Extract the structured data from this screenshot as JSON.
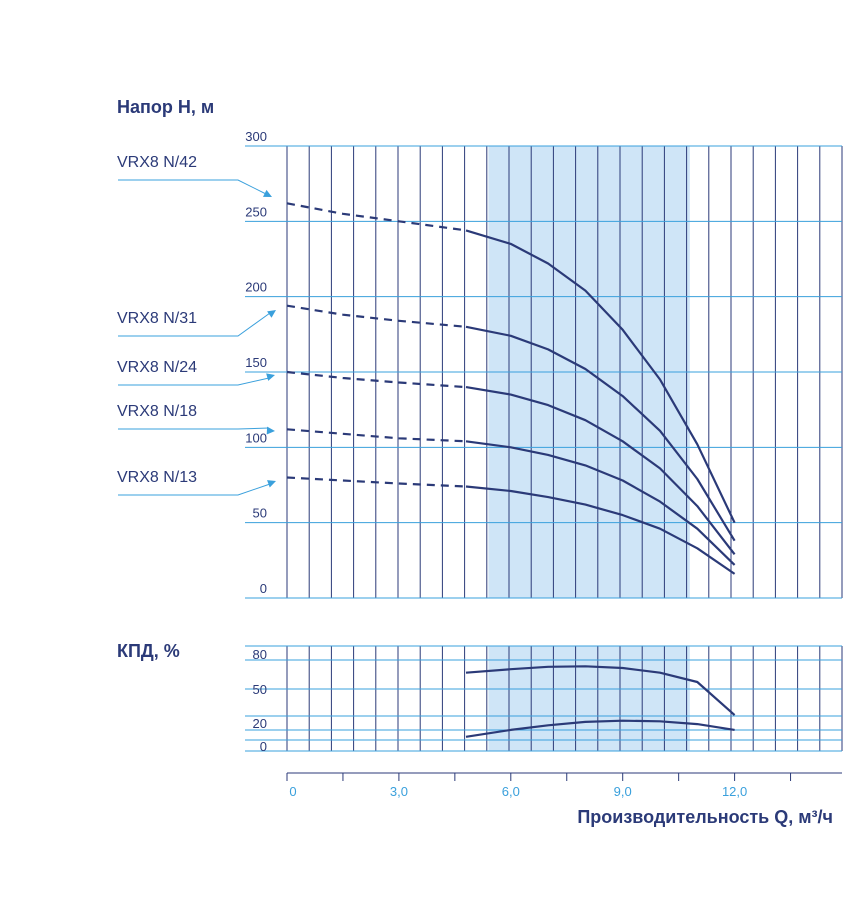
{
  "colors": {
    "grid": "#3aa0dc",
    "band": "#cfe5f7",
    "curve": "#2b3a78",
    "pointer": "#3aa0dc",
    "text": "#2b3a78",
    "x_tick_text": "#3aa0dc"
  },
  "chart_data": [
    {
      "type": "line",
      "ylabel": "Напор H, м",
      "xlim": [
        0,
        15
      ],
      "ylim": [
        0,
        300
      ],
      "y_ticks": [
        "0",
        "50",
        "100",
        "150",
        "200",
        "250",
        "300"
      ],
      "recommended_range_x": [
        5.4,
        10.8
      ],
      "grid": true,
      "series": [
        {
          "name": "VRX8 N/42",
          "dashed": {
            "x": [
              0,
              1.5,
              3.0,
              4.8
            ],
            "y": [
              262,
              255,
              250,
              244
            ]
          },
          "solid": {
            "x": [
              4.8,
              6,
              7,
              8,
              9,
              10,
              11,
              12
            ],
            "y": [
              244,
              235,
              222,
              204,
              178,
              145,
              102,
              50
            ]
          }
        },
        {
          "name": "VRX8 N/31",
          "dashed": {
            "x": [
              0,
              1.5,
              3.0,
              4.8
            ],
            "y": [
              194,
              188,
              184,
              180
            ]
          },
          "solid": {
            "x": [
              4.8,
              6,
              7,
              8,
              9,
              10,
              11,
              12
            ],
            "y": [
              180,
              174,
              165,
              152,
              134,
              111,
              79,
              38
            ]
          }
        },
        {
          "name": "VRX8 N/24",
          "dashed": {
            "x": [
              0,
              1.5,
              3.0,
              4.8
            ],
            "y": [
              150,
              146,
              143,
              140
            ]
          },
          "solid": {
            "x": [
              4.8,
              6,
              7,
              8,
              9,
              10,
              11,
              12
            ],
            "y": [
              140,
              135,
              128,
              118,
              104,
              86,
              61,
              29
            ]
          }
        },
        {
          "name": "VRX8 N/18",
          "dashed": {
            "x": [
              0,
              1.5,
              3.0,
              4.8
            ],
            "y": [
              112,
              109,
              106,
              104
            ]
          },
          "solid": {
            "x": [
              4.8,
              6,
              7,
              8,
              9,
              10,
              11,
              12
            ],
            "y": [
              104,
              100,
              95,
              88,
              78,
              64,
              46,
              22
            ]
          }
        },
        {
          "name": "VRX8 N/13",
          "dashed": {
            "x": [
              0,
              1.5,
              3.0,
              4.8
            ],
            "y": [
              80,
              78,
              76,
              74
            ]
          },
          "solid": {
            "x": [
              4.8,
              6,
              7,
              8,
              9,
              10,
              11,
              12
            ],
            "y": [
              74,
              71,
              67,
              62,
              55,
              46,
              33,
              16
            ]
          }
        }
      ]
    },
    {
      "type": "line",
      "ylabel": "КПД, %",
      "xlabel": "Производительность Q, м³/ч",
      "xlim": [
        0,
        15
      ],
      "ylim": [
        0,
        80
      ],
      "y_ticks": [
        "0",
        "20",
        "50",
        "80"
      ],
      "x_ticks": [
        "0",
        "3,0",
        "6,0",
        "9,0",
        "12,0"
      ],
      "x_tick_values": [
        0,
        3,
        6,
        9,
        12
      ],
      "recommended_range_x": [
        5.4,
        10.8
      ],
      "grid": true,
      "series": [
        {
          "x": [
            4.8,
            6,
            7,
            8,
            9,
            10,
            11,
            12
          ],
          "y": [
            64,
            67,
            69,
            69.5,
            68,
            64,
            56,
            27
          ]
        },
        {
          "x": [
            4.8,
            6,
            7,
            8,
            9,
            10,
            11,
            12
          ],
          "y": [
            8,
            14,
            18,
            21,
            22,
            21.5,
            19,
            14
          ]
        }
      ]
    }
  ],
  "labels": {
    "head_title": "Напор H, м",
    "eff_title": "КПД, %",
    "x_title": "Производительность Q, м³/ч"
  }
}
